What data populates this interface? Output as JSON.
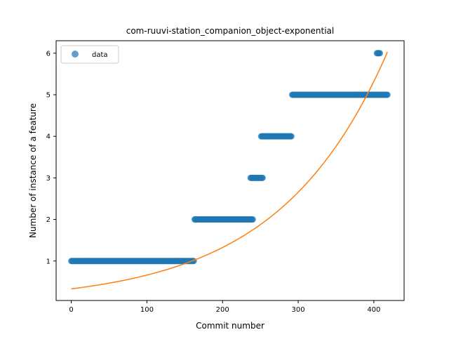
{
  "chart_data": {
    "type": "scatter",
    "title": "com-ruuvi-station_companion_object-exponential",
    "xlabel": "Commit number",
    "ylabel": "Number of instance of a feature",
    "xlim": [
      -20,
      440
    ],
    "ylim": [
      0.05,
      6.3
    ],
    "xticks": [
      0,
      100,
      200,
      300,
      400
    ],
    "yticks": [
      1,
      2,
      3,
      4,
      5,
      6
    ],
    "grid": false,
    "legend": {
      "position": "top-left",
      "entries": [
        "data"
      ]
    },
    "colors": {
      "points": "#1f77b4",
      "fit": "#ff7f0e"
    },
    "series": [
      {
        "name": "data",
        "type": "scatter",
        "segments": [
          {
            "x_start": 0,
            "x_end": 162,
            "y": 1
          },
          {
            "x_start": 163,
            "x_end": 240,
            "y": 2
          },
          {
            "x_start": 237,
            "x_end": 253,
            "y": 3
          },
          {
            "x_start": 251,
            "x_end": 291,
            "y": 4
          },
          {
            "x_start": 292,
            "x_end": 418,
            "y": 5
          },
          {
            "x_start": 404,
            "x_end": 408,
            "y": 6
          }
        ]
      },
      {
        "type": "line",
        "x_range": [
          0,
          418
        ],
        "y_start": 0.33,
        "y_end": 6.03
      }
    ]
  }
}
